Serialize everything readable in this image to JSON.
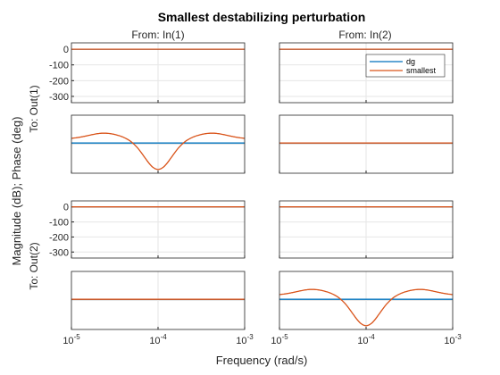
{
  "chart_data": {
    "type": "line",
    "title": "Smallest destabilizing perturbation",
    "xlabel": "Frequency (rad/s)",
    "ylabel": "Magnitude (dB); Phase (deg)",
    "x_scale": "log",
    "xlim": [
      1e-05,
      0.001
    ],
    "x_tick_labels": [
      {
        "base": "10",
        "exp": "-5"
      },
      {
        "base": "10",
        "exp": "-4"
      },
      {
        "base": "10",
        "exp": "-3"
      }
    ],
    "column_titles": [
      "From: In(1)",
      "From: In(2)"
    ],
    "row_titles": [
      "To: Out(1)",
      "To: Out(2)"
    ],
    "magnitude_ylim": [
      -340,
      40
    ],
    "magnitude_yticks": [
      "0",
      "-100",
      "-200",
      "-300"
    ],
    "grid": true,
    "legend": {
      "placement": "top-right of In(2)→Out(1) magnitude axes",
      "entries": [
        "dg",
        "smallest"
      ]
    },
    "series": [
      {
        "name": "dg",
        "color": "#0072BD"
      },
      {
        "name": "smallest",
        "color": "#D95319"
      }
    ],
    "panels": [
      {
        "kind": "magnitude",
        "output": "Out(1)",
        "input": "In(1)",
        "dg": {
          "type": "constant",
          "value": 0
        },
        "smallest": {
          "type": "constant",
          "value": 0
        }
      },
      {
        "kind": "magnitude",
        "output": "Out(1)",
        "input": "In(2)",
        "legend": true,
        "dg": {
          "type": "constant",
          "value": 0
        },
        "smallest": {
          "type": "constant",
          "value": 0
        }
      },
      {
        "kind": "phase",
        "output": "Out(1)",
        "input": "In(1)",
        "dg": {
          "type": "constant",
          "level": 0.0
        },
        "smallest": {
          "type": "notch",
          "base": 0.14,
          "bump": 0.2,
          "dip": 1.05,
          "center_log10": -4
        }
      },
      {
        "kind": "phase",
        "output": "Out(1)",
        "input": "In(2)",
        "dg": {
          "type": "constant",
          "level": 0.0
        },
        "smallest": {
          "type": "constant",
          "level": 0.0
        }
      },
      {
        "kind": "magnitude",
        "output": "Out(2)",
        "input": "In(1)",
        "dg": {
          "type": "constant",
          "value": 0
        },
        "smallest": {
          "type": "constant",
          "value": 0
        }
      },
      {
        "kind": "magnitude",
        "output": "Out(2)",
        "input": "In(2)",
        "dg": {
          "type": "constant",
          "value": 0
        },
        "smallest": {
          "type": "constant",
          "value": 0
        }
      },
      {
        "kind": "phase",
        "output": "Out(2)",
        "input": "In(1)",
        "dg": {
          "type": "constant",
          "level": 0.0
        },
        "smallest": {
          "type": "constant",
          "level": 0.0
        }
      },
      {
        "kind": "phase",
        "output": "Out(2)",
        "input": "In(2)",
        "dg": {
          "type": "constant",
          "level": 0.0
        },
        "smallest": {
          "type": "notch",
          "base": 0.14,
          "bump": 0.2,
          "dip": 1.05,
          "center_log10": -4
        }
      }
    ]
  }
}
